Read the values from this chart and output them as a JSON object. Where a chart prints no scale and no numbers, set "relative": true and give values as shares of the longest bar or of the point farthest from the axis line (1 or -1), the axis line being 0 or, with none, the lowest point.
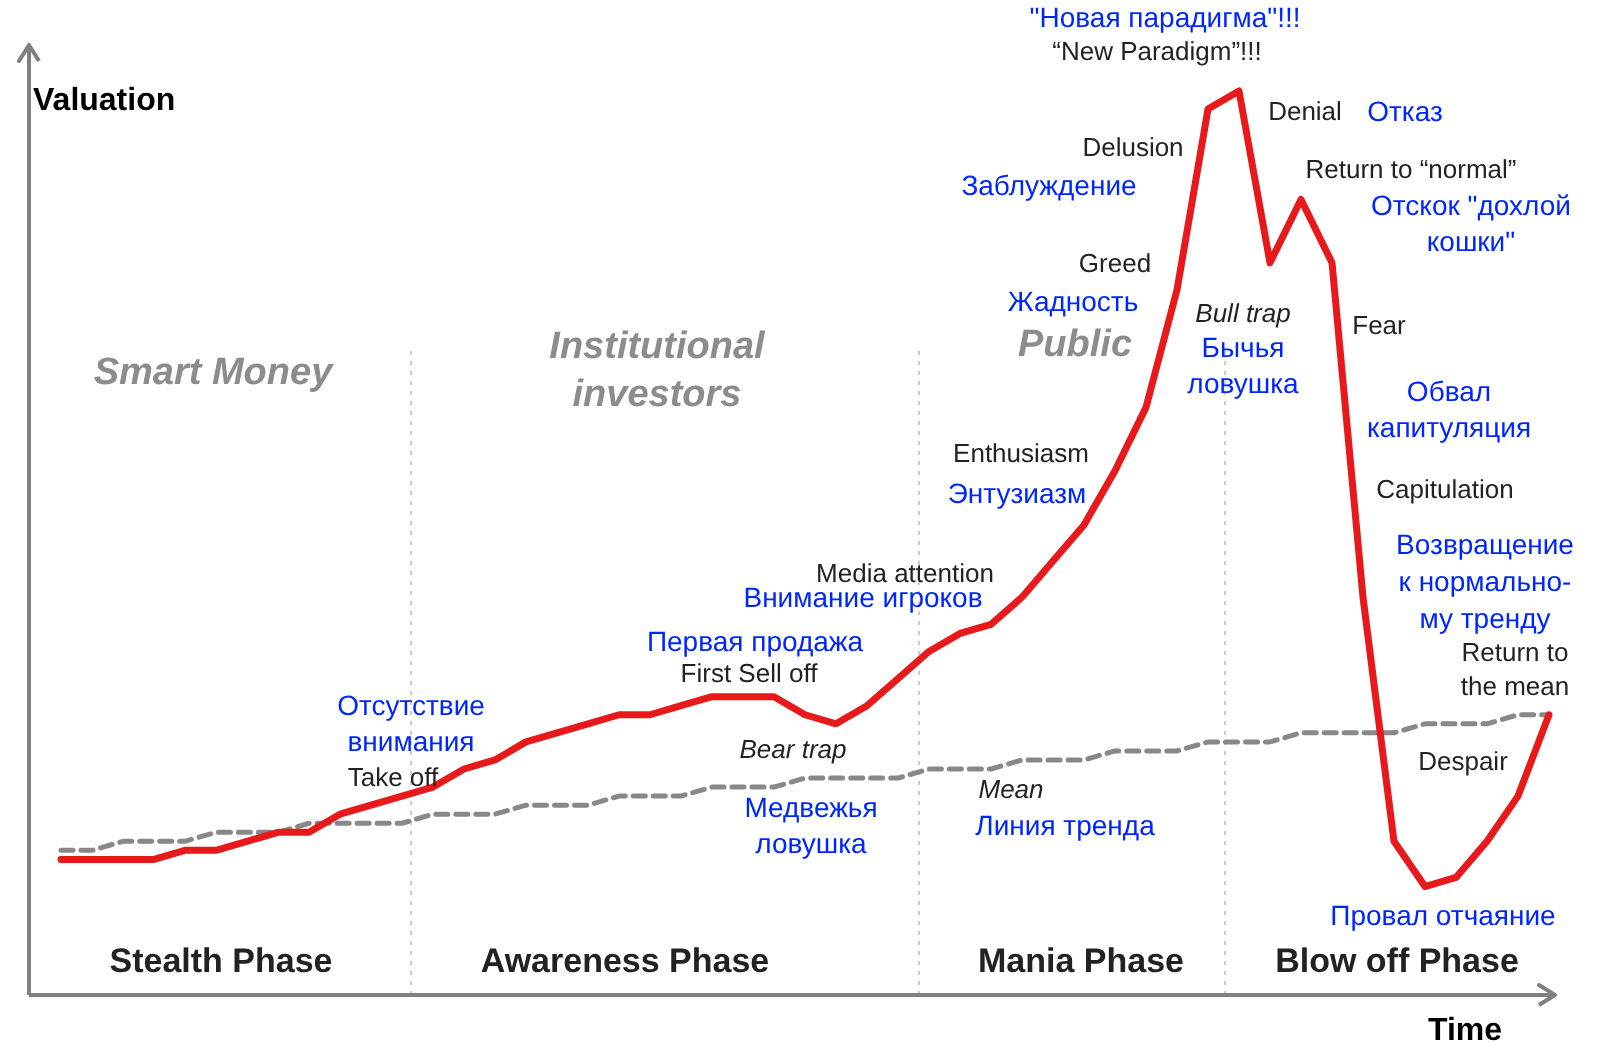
{
  "chart_data": {
    "type": "line",
    "relative": true,
    "ylabel": "Valuation",
    "xlabel": "Time",
    "categories": [
      null,
      null,
      null,
      null,
      null,
      null,
      null,
      null,
      null,
      null,
      null,
      null,
      null,
      null,
      null,
      null,
      null,
      null,
      null,
      null,
      null,
      null,
      null,
      null,
      null,
      null,
      null,
      null,
      null,
      null,
      null,
      null,
      null,
      null,
      null,
      null,
      null,
      null,
      null,
      null,
      null,
      null,
      null,
      null,
      null,
      null,
      null,
      null,
      null
    ],
    "series": [
      {
        "color": "#e8191b",
        "values": [
          0.15,
          0.15,
          0.15,
          0.15,
          0.16,
          0.16,
          0.17,
          0.18,
          0.18,
          0.2,
          0.21,
          0.22,
          0.23,
          0.25,
          0.26,
          0.28,
          0.29,
          0.3,
          0.31,
          0.31,
          0.32,
          0.33,
          0.33,
          0.33,
          0.31,
          0.3,
          0.32,
          0.35,
          0.38,
          0.4,
          0.41,
          0.44,
          0.48,
          0.52,
          0.58,
          0.65,
          0.78,
          0.98,
          1.0,
          0.81,
          0.88,
          0.81,
          0.44,
          0.17,
          0.12,
          0.13,
          0.17,
          0.22,
          0.31
        ]
      },
      {
        "color": "#888888",
        "line_style": "dashed",
        "values": [
          0.16,
          0.16,
          0.17,
          0.17,
          0.17,
          0.18,
          0.18,
          0.18,
          0.19,
          0.19,
          0.19,
          0.19,
          0.2,
          0.2,
          0.2,
          0.21,
          0.21,
          0.21,
          0.22,
          0.22,
          0.22,
          0.23,
          0.23,
          0.23,
          0.24,
          0.24,
          0.24,
          0.24,
          0.25,
          0.25,
          0.25,
          0.26,
          0.26,
          0.26,
          0.27,
          0.27,
          0.27,
          0.28,
          0.28,
          0.28,
          0.29,
          0.29,
          0.29,
          0.29,
          0.3,
          0.3,
          0.3,
          0.31,
          0.31
        ]
      }
    ],
    "annotations": [
      "Smart Money",
      "Institutional investors",
      "Public",
      "Stealth Phase",
      "Awareness Phase",
      "Mania Phase",
      "Blow off Phase",
      "“New Paradigm”!!!",
      "Denial",
      "Delusion",
      "Greed",
      "Return to “normal”",
      "Bull trap",
      "Fear",
      "Enthusiasm",
      "Capitulation",
      "Media attention",
      "First Sell off",
      "Return to the mean",
      "Take off",
      "Bear trap",
      "Mean",
      "Despair",
      "\"Новая парадигма\"!!!",
      "Отказ",
      "Заблуждение",
      "Отскок \"дохлой кошки\"",
      "Жадность",
      "Бычья ловушка",
      "Обвал капитуляция",
      "Энтузиазм",
      "Возвращение к нормально-му тренду",
      "Внимание игроков",
      "Первая продажа",
      "Отсутствие внимания",
      "Медвежья ловушка",
      "Линия тренда",
      "Провал отчаяние"
    ]
  }
}
